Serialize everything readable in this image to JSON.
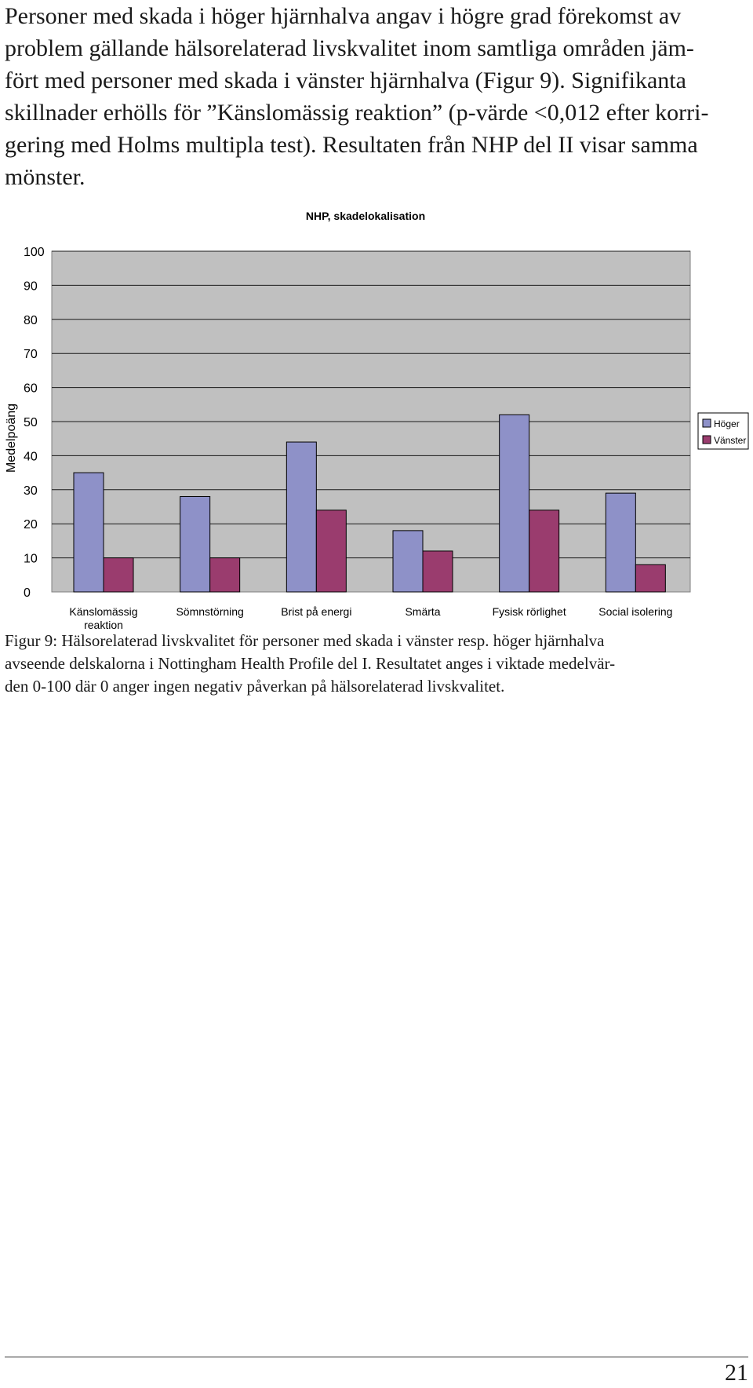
{
  "body_text": [
    "Personer med skada i höger hjärnhalva angav i högre grad förekomst av",
    "problem gällande hälsorelaterad livskvalitet inom samtliga områden jäm-",
    "fört med personer med skada i vänster hjärnhalva (Figur 9). Signifikanta",
    "skillnader erhölls för ”Känslomässig reaktion” (p-värde <0,012 efter korri-",
    "gering med Holms multipla test). Resultaten från NHP del II visar samma",
    "mönster."
  ],
  "chart_data": {
    "type": "bar",
    "title": "NHP, skadelokalisation",
    "ylabel": "Medelpoäng",
    "xlabel": "",
    "ylim": [
      0,
      100
    ],
    "yticks": [
      0,
      10,
      20,
      30,
      40,
      50,
      60,
      70,
      80,
      90,
      100
    ],
    "categories": [
      [
        "Känslomässig",
        "reaktion"
      ],
      [
        "Sömnstörning"
      ],
      [
        "Brist på energi"
      ],
      [
        "Smärta"
      ],
      [
        "Fysisk rörlighet"
      ],
      [
        "Social isolering"
      ]
    ],
    "series": [
      {
        "name": "Höger",
        "color": "#8e91c8",
        "values": [
          35,
          28,
          44,
          18,
          52,
          29
        ]
      },
      {
        "name": "Vänster",
        "color": "#9a3c6e",
        "values": [
          10,
          10,
          24,
          12,
          24,
          8
        ]
      }
    ],
    "legend": "right",
    "grid": true,
    "plot_background": "#c0c0c0"
  },
  "caption": [
    "Figur 9: Hälsorelaterad livskvalitet för personer med skada i vänster resp. höger hjärnhalva",
    "avseende delskalorna i  Nottingham Health Profile del I. Resultatet anges i viktade medelvär-",
    "den 0-100 där 0 anger ingen negativ påverkan på hälsorelaterad livskvalitet."
  ],
  "page_number": "21"
}
